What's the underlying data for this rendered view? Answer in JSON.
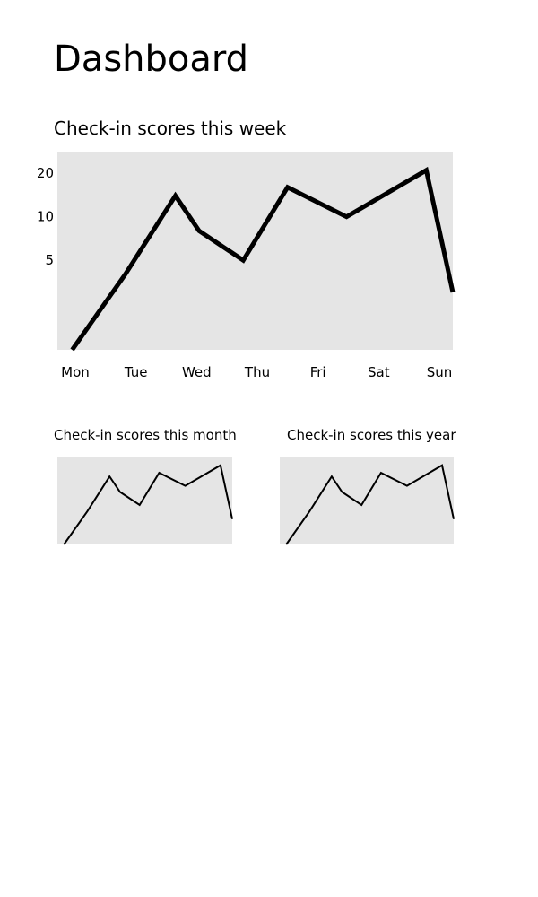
{
  "page": {
    "title": "Dashboard"
  },
  "colors": {
    "plot_background": "#e5e5e5",
    "line": "#000000"
  },
  "chart_data": [
    {
      "type": "line",
      "title": "Check-in scores this week",
      "xlabel": "",
      "ylabel": "",
      "categories": [
        "Mon",
        "Tue",
        "Wed",
        "Thu",
        "Fri",
        "Sat",
        "Sun"
      ],
      "x": [
        0,
        0.9,
        1.75,
        2.15,
        2.9,
        3.65,
        4.65,
        6.0,
        6.45
      ],
      "y": [
        1.2,
        4,
        14,
        8,
        5,
        16,
        10,
        21,
        3
      ],
      "yscale": "log",
      "yticks": [
        5,
        10,
        20
      ],
      "ylim": [
        1.2,
        21
      ],
      "xlim": [
        -0.25,
        6.45
      ],
      "grid": false,
      "legend": "none"
    },
    {
      "type": "line",
      "title": "Check-in scores this month",
      "x": [
        0,
        0.9,
        1.75,
        2.15,
        2.9,
        3.65,
        4.65,
        6.0,
        6.45
      ],
      "y": [
        1.2,
        4,
        14,
        8,
        5,
        16,
        10,
        21,
        3
      ],
      "yscale": "log",
      "grid": false,
      "legend": "none"
    },
    {
      "type": "line",
      "title": "Check-in scores this year",
      "x": [
        0,
        0.9,
        1.75,
        2.15,
        2.9,
        3.65,
        4.65,
        6.0,
        6.45
      ],
      "y": [
        1.2,
        4,
        14,
        8,
        5,
        16,
        10,
        21,
        3
      ],
      "yscale": "log",
      "grid": false,
      "legend": "none"
    }
  ]
}
